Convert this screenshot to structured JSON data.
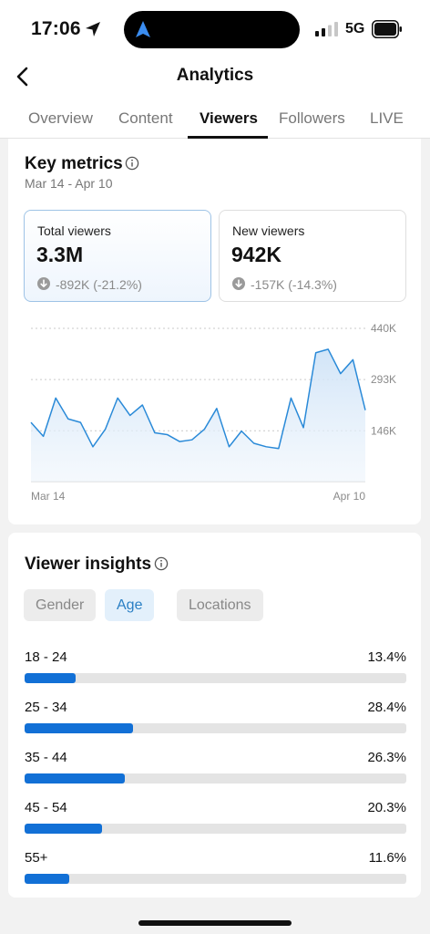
{
  "status_bar": {
    "time": "17:06",
    "network": "5G"
  },
  "nav": {
    "title": "Analytics"
  },
  "tabs": [
    {
      "label": "Overview",
      "active": false
    },
    {
      "label": "Content",
      "active": false
    },
    {
      "label": "Viewers",
      "active": true
    },
    {
      "label": "Followers",
      "active": false
    },
    {
      "label": "LIVE",
      "active": false
    }
  ],
  "key_metrics": {
    "title": "Key metrics",
    "date_range": "Mar 14 - Apr 10",
    "cards": [
      {
        "label": "Total viewers",
        "value": "3.3M",
        "change": "-892K (-21.2%)",
        "selected": true
      },
      {
        "label": "New viewers",
        "value": "942K",
        "change": "-157K (-14.3%)",
        "selected": false
      }
    ]
  },
  "chart_data": {
    "type": "area",
    "x_start_label": "Mar 14",
    "x_end_label": "Apr 10",
    "y_ticks": [
      "440K",
      "293K",
      "146K"
    ],
    "y_tick_values": [
      440000,
      293000,
      146000
    ],
    "ylim": [
      0,
      440000
    ],
    "grid": true,
    "series_color": "#2a8ad8",
    "values": [
      170000,
      130000,
      240000,
      180000,
      170000,
      100000,
      150000,
      240000,
      190000,
      220000,
      140000,
      135000,
      115000,
      120000,
      150000,
      210000,
      100000,
      145000,
      110000,
      100000,
      95000,
      240000,
      155000,
      370000,
      380000,
      310000,
      350000,
      205000
    ]
  },
  "insights": {
    "title": "Viewer insights",
    "segments": [
      {
        "label": "Gender",
        "active": false
      },
      {
        "label": "Age",
        "active": true
      },
      {
        "label": "Locations",
        "active": false
      }
    ],
    "age_groups": [
      {
        "label": "18 - 24",
        "pct_label": "13.4%",
        "pct": 13.4
      },
      {
        "label": "25 - 34",
        "pct_label": "28.4%",
        "pct": 28.4
      },
      {
        "label": "35 - 44",
        "pct_label": "26.3%",
        "pct": 26.3
      },
      {
        "label": "45 - 54",
        "pct_label": "20.3%",
        "pct": 20.3
      },
      {
        "label": "55+",
        "pct_label": "11.6%",
        "pct": 11.6
      }
    ]
  }
}
